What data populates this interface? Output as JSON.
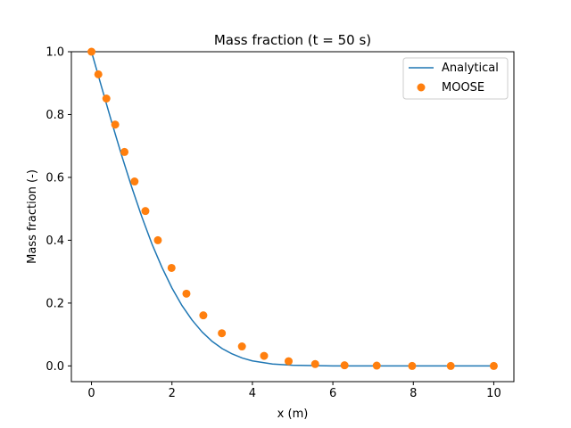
{
  "chart_data": {
    "type": "line",
    "title": "Mass fraction (t = 50 s)",
    "xlabel": "x (m)",
    "ylabel": "Mass fraction (-)",
    "xlim": [
      -0.5,
      10.5
    ],
    "ylim": [
      -0.05,
      1.0
    ],
    "xticks": [
      0,
      2,
      4,
      6,
      8,
      10
    ],
    "yticks": [
      0.0,
      0.2,
      0.4,
      0.6,
      0.8,
      1.0
    ],
    "xtick_labels": [
      "0",
      "2",
      "4",
      "6",
      "8",
      "10"
    ],
    "ytick_labels": [
      "0.0",
      "0.2",
      "0.4",
      "0.6",
      "0.8",
      "1.0"
    ],
    "grid": false,
    "legend_position": "top-right",
    "series": [
      {
        "name": "Analytical",
        "style": "line",
        "color": "#1f77b4",
        "x": [
          0,
          0.25,
          0.5,
          0.75,
          1.0,
          1.25,
          1.5,
          1.75,
          2.0,
          2.25,
          2.5,
          2.75,
          3.0,
          3.25,
          3.5,
          3.75,
          4.0,
          4.5,
          5.0,
          5.5,
          6.0,
          6.5,
          7.0,
          8.0,
          9.0,
          10.0
        ],
        "y": [
          1.0,
          0.888,
          0.777,
          0.67,
          0.569,
          0.475,
          0.389,
          0.314,
          0.248,
          0.192,
          0.146,
          0.108,
          0.078,
          0.055,
          0.038,
          0.025,
          0.016,
          0.006,
          0.002,
          0.001,
          0.0,
          0.0,
          0.0,
          0.0,
          0.0,
          0.0
        ]
      },
      {
        "name": "MOOSE",
        "style": "markers",
        "color": "#ff7f0e",
        "x": [
          0.0,
          0.17,
          0.37,
          0.59,
          0.82,
          1.07,
          1.34,
          1.65,
          1.99,
          2.36,
          2.78,
          3.24,
          3.74,
          4.29,
          4.9,
          5.56,
          6.29,
          7.09,
          7.97,
          8.93,
          10.0
        ],
        "y": [
          1.0,
          0.928,
          0.851,
          0.768,
          0.681,
          0.587,
          0.493,
          0.4,
          0.312,
          0.23,
          0.161,
          0.104,
          0.062,
          0.032,
          0.015,
          0.006,
          0.002,
          0.001,
          0.0,
          0.0,
          0.0
        ]
      }
    ]
  }
}
